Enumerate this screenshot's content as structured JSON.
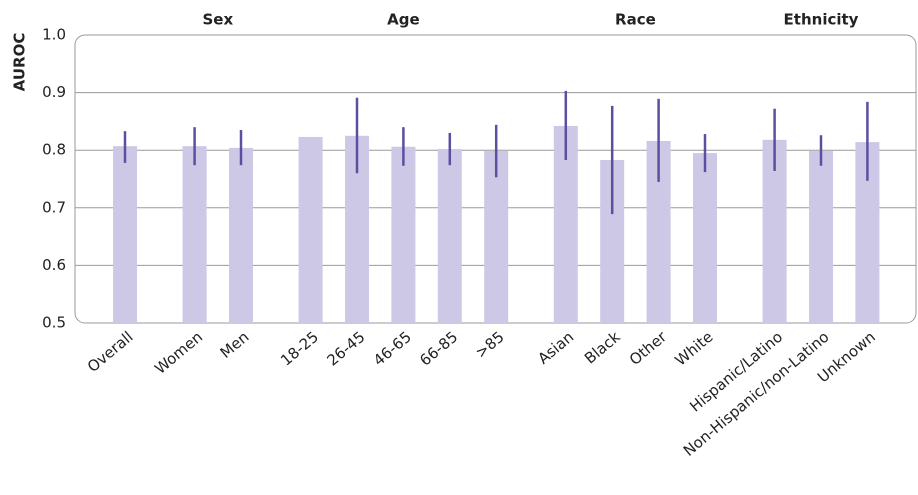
{
  "chart_data": {
    "type": "bar",
    "y_label": "AUROC",
    "ylim": [
      0.5,
      1.0
    ],
    "yticks": [
      {
        "value": 0.5,
        "label": "0.5"
      },
      {
        "value": 0.6,
        "label": "0.6"
      },
      {
        "value": 0.7,
        "label": "0.7"
      },
      {
        "value": 0.8,
        "label": "0.8"
      },
      {
        "value": 0.9,
        "label": "0.9"
      },
      {
        "value": 1.0,
        "label": "1.0"
      }
    ],
    "grid": true,
    "bar_color": "#cdc8e6",
    "error_color": "#5b4fa0",
    "groups": [
      {
        "categories": [
          "Overall"
        ],
        "values": [
          0.807
        ],
        "lower": [
          0.778
        ],
        "upper": [
          0.833
        ]
      },
      {
        "label": "Sex",
        "categories": [
          "Women",
          "Men"
        ],
        "values": [
          0.807,
          0.804
        ],
        "lower": [
          0.774,
          0.774
        ],
        "upper": [
          0.84,
          0.835
        ]
      },
      {
        "label": "Age",
        "categories": [
          "18-25",
          "26-45",
          "46-65",
          "66-85",
          ">85"
        ],
        "values": [
          0.823,
          0.825,
          0.806,
          0.802,
          0.799
        ],
        "lower": [
          null,
          0.76,
          0.773,
          0.774,
          0.753
        ],
        "upper": [
          null,
          0.891,
          0.84,
          0.83,
          0.844
        ]
      },
      {
        "label": "Race",
        "categories": [
          "Asian",
          "Black",
          "Other",
          "White"
        ],
        "values": [
          0.842,
          0.783,
          0.816,
          0.795
        ],
        "lower": [
          0.783,
          0.689,
          0.745,
          0.762
        ],
        "upper": [
          0.903,
          0.877,
          0.889,
          0.828
        ]
      },
      {
        "label": "Ethnicity",
        "categories": [
          "Hispanic/Latino",
          "Non-Hispanic/non-Latino",
          "Unknown"
        ],
        "values": [
          0.818,
          0.799,
          0.814
        ],
        "lower": [
          0.764,
          0.773,
          0.747
        ],
        "upper": [
          0.872,
          0.826,
          0.884
        ]
      }
    ]
  }
}
